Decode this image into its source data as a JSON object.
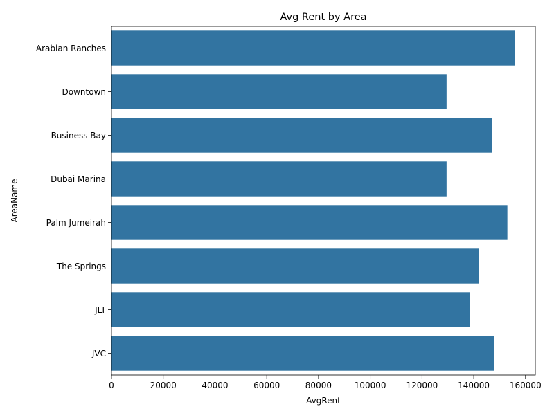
{
  "chart_data": {
    "type": "bar",
    "orientation": "horizontal",
    "title": "Avg Rent by Area",
    "xlabel": "AvgRent",
    "ylabel": "AreaName",
    "categories": [
      "Arabian Ranches",
      "Downtown",
      "Business Bay",
      "Dubai Marina",
      "Palm Jumeirah",
      "The Springs",
      "JLT",
      "JVC"
    ],
    "values": [
      156000,
      129500,
      147200,
      129500,
      153000,
      142000,
      138500,
      147800
    ],
    "xlim": [
      0,
      163800
    ],
    "xticks": [
      0,
      20000,
      40000,
      60000,
      80000,
      100000,
      120000,
      140000,
      160000
    ],
    "grid": false,
    "bar_color": "#3274a1"
  }
}
